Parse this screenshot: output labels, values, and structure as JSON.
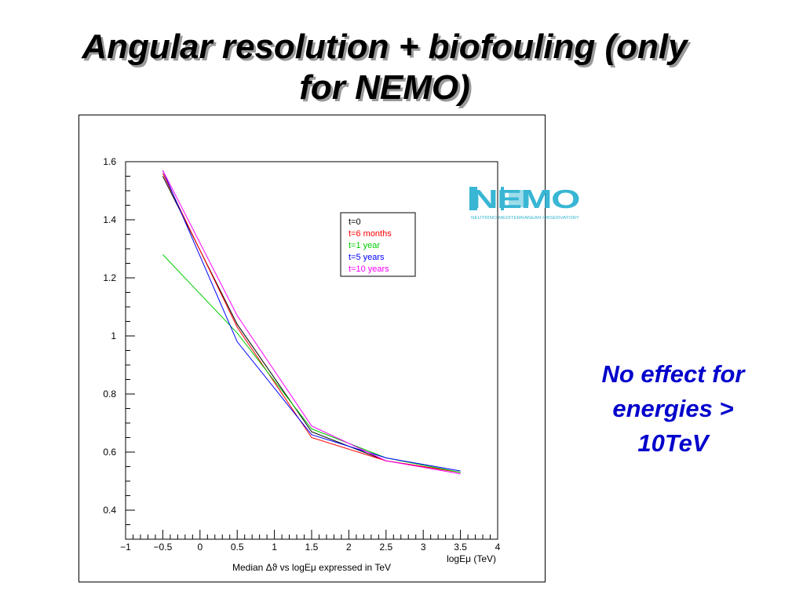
{
  "slide": {
    "title_line1": "Angular resolution + biofouling (only",
    "title_line2": "for NEMO)",
    "note_lines": [
      "No effect  for",
      "energies >",
      "10TeV"
    ]
  },
  "logo": {
    "text": "NEMO",
    "subtitle": "NEUTRINO MEDITERRANEAN OBSERVATORY",
    "colors": {
      "primary": "#38b6d4",
      "light": "#9fdcea"
    }
  },
  "chart_data": {
    "type": "line",
    "title": "",
    "xlabel": "Median Δϑ vs logEμ expressed in TeV",
    "x_axis_title": "logEμ (TeV)",
    "ylabel": "",
    "xlim": [
      -1,
      4
    ],
    "ylim": [
      0.3,
      1.6
    ],
    "x_ticks": [
      -1,
      -0.5,
      0,
      0.5,
      1,
      1.5,
      2,
      2.5,
      3,
      3.5,
      4
    ],
    "x_tick_labels": [
      "−1",
      "−0.5",
      "0",
      "0.5",
      "1",
      "1.5",
      "2",
      "2.5",
      "3",
      "3.5",
      "4"
    ],
    "y_ticks": [
      0.4,
      0.6,
      0.8,
      1,
      1.2,
      1.4,
      1.6
    ],
    "y_tick_labels": [
      "0.4",
      "0.6",
      "0.8",
      "1",
      "1.2",
      "1.4",
      "1.6"
    ],
    "x": [
      -0.5,
      0.5,
      1.5,
      2.5,
      3.5
    ],
    "series": [
      {
        "name": "t=0",
        "color": "#000000",
        "values": [
          1.55,
          1.04,
          0.67,
          0.57,
          0.53
        ]
      },
      {
        "name": "t=6 months",
        "color": "#ff0000",
        "values": [
          1.56,
          1.03,
          0.65,
          0.57,
          0.53
        ]
      },
      {
        "name": "t=1 year",
        "color": "#00cc00",
        "values": [
          1.28,
          1.01,
          0.68,
          0.58,
          0.53
        ]
      },
      {
        "name": "t=5 years",
        "color": "#0000ff",
        "values": [
          1.57,
          0.98,
          0.66,
          0.58,
          0.535
        ]
      },
      {
        "name": "t=10 years",
        "color": "#ff00ff",
        "values": [
          1.57,
          1.07,
          0.69,
          0.57,
          0.525
        ]
      }
    ],
    "legend_position": "top-right",
    "grid": false
  }
}
